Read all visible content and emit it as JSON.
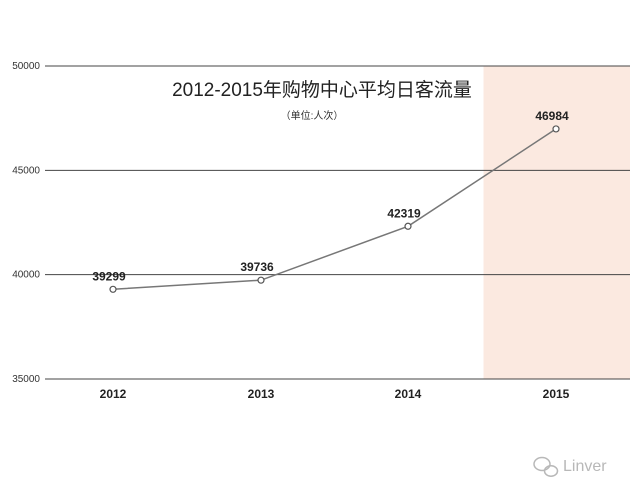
{
  "chart_data": {
    "type": "line",
    "title": "2012-2015年购物中心平均日客流量",
    "subtitle": "（单位:人次）",
    "categories": [
      "2012",
      "2013",
      "2014",
      "2015"
    ],
    "series": [
      {
        "values": [
          39299,
          39736,
          42319,
          46984
        ]
      }
    ],
    "ylim": [
      35000,
      50000
    ],
    "yticks": [
      35000,
      40000,
      45000,
      50000
    ],
    "data_labels": [
      "39299",
      "39736",
      "42319",
      "46984"
    ],
    "highlight_category": "2015",
    "grid": true
  },
  "colors": {
    "line": "#777777",
    "grid": "#444444",
    "highlight": "#fbe9e0",
    "marker_fill": "#ffffff"
  },
  "watermark": {
    "text": "Linver",
    "icon": "wechat-logo-icon"
  }
}
